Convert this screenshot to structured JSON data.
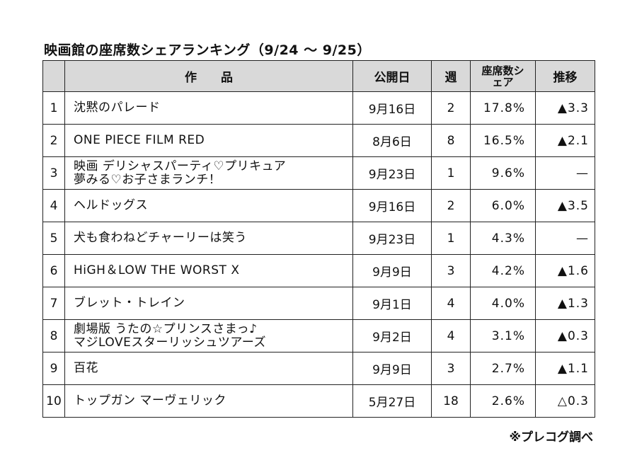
{
  "title": "映画館の座席数シェアランキング（9/24 ～ 9/25）",
  "headers": {
    "rank": "",
    "title": "作　　品",
    "release": "公開日",
    "weeks": "週",
    "share": "座席数シェア",
    "trend": "推移"
  },
  "rows": [
    {
      "rank": "1",
      "title": [
        "沈黙のパレード"
      ],
      "release": "9月16日",
      "weeks": "2",
      "share": "17.8%",
      "trend": "▲3.3"
    },
    {
      "rank": "2",
      "title": [
        "ONE PIECE FILM RED"
      ],
      "release": "8月6日",
      "weeks": "8",
      "share": "16.5%",
      "trend": "▲2.1"
    },
    {
      "rank": "3",
      "title": [
        "映画 デリシャスパーティ♡プリキュア",
        "夢みる♡お子さまランチ！"
      ],
      "release": "9月23日",
      "weeks": "1",
      "share": "9.6%",
      "trend": "—"
    },
    {
      "rank": "4",
      "title": [
        "ヘルドッグス"
      ],
      "release": "9月16日",
      "weeks": "2",
      "share": "6.0%",
      "trend": "▲3.5"
    },
    {
      "rank": "5",
      "title": [
        "犬も食わねどチャーリーは笑う"
      ],
      "release": "9月23日",
      "weeks": "1",
      "share": "4.3%",
      "trend": "—"
    },
    {
      "rank": "6",
      "title": [
        "HiGH＆LOW THE WORST X"
      ],
      "release": "9月9日",
      "weeks": "3",
      "share": "4.2%",
      "trend": "▲1.6"
    },
    {
      "rank": "7",
      "title": [
        "ブレット・トレイン"
      ],
      "release": "9月1日",
      "weeks": "4",
      "share": "4.0%",
      "trend": "▲1.3"
    },
    {
      "rank": "8",
      "title": [
        "劇場版 うたの☆プリンスさまっ♪",
        "マジLOVEスターリッシュツアーズ"
      ],
      "release": "9月2日",
      "weeks": "4",
      "share": "3.1%",
      "trend": "▲0.3"
    },
    {
      "rank": "9",
      "title": [
        "百花"
      ],
      "release": "9月9日",
      "weeks": "3",
      "share": "2.7%",
      "trend": "▲1.1"
    },
    {
      "rank": "10",
      "title": [
        "トップガン マーヴェリック"
      ],
      "release": "5月27日",
      "weeks": "18",
      "share": "2.6%",
      "trend": "△0.3"
    }
  ],
  "source": "※プレコグ調べ"
}
